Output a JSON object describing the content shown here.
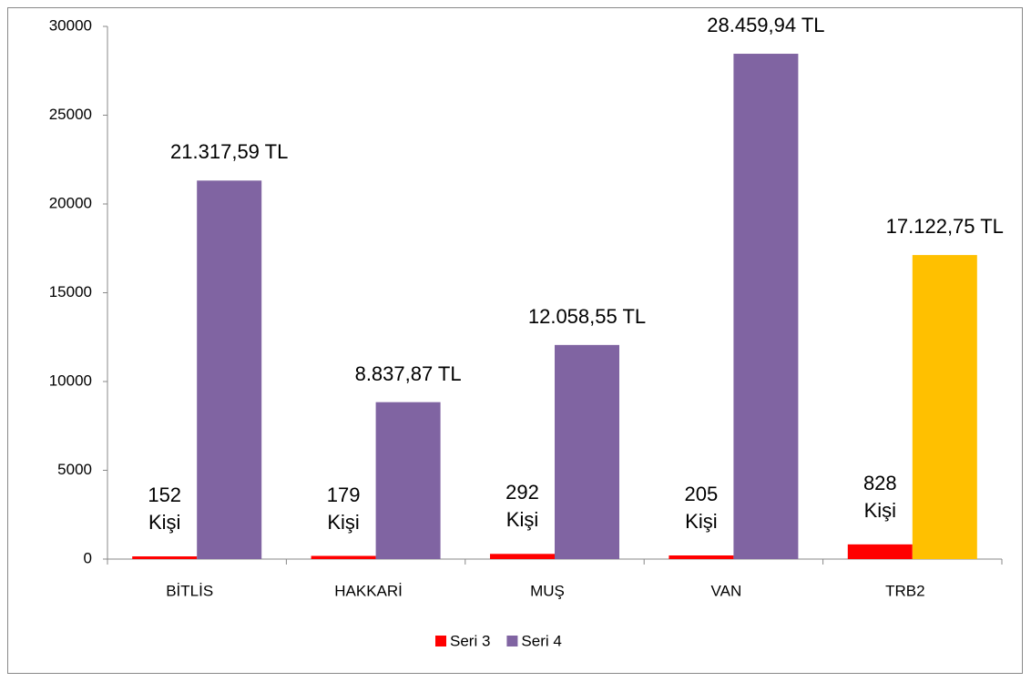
{
  "chart_data": {
    "type": "bar",
    "categories": [
      "BİTLİS",
      "HAKKARİ",
      "MUŞ",
      "VAN",
      "TRB2"
    ],
    "series": [
      {
        "name": "Seri 3",
        "color": "#ff0000",
        "values": [
          152,
          179,
          292,
          205,
          828
        ],
        "value_labels": [
          "152 Kişi",
          "179 Kişi",
          "292 Kişi",
          "205 Kişi",
          "828 Kişi"
        ]
      },
      {
        "name": "Seri 4",
        "color": "#8064a2",
        "colors": [
          "#8064a2",
          "#8064a2",
          "#8064a2",
          "#8064a2",
          "#ffc000"
        ],
        "values": [
          21317.59,
          8837.87,
          12058.55,
          28459.94,
          17122.75
        ],
        "value_labels": [
          "21.317,59 TL",
          "8.837,87 TL",
          "12.058,55 TL",
          "28.459,94 TL",
          "17.122,75 TL"
        ]
      }
    ],
    "ylim": [
      0,
      30000
    ],
    "yticks": [
      0,
      5000,
      10000,
      15000,
      20000,
      25000,
      30000
    ],
    "grid": false,
    "legend": "bottom"
  }
}
